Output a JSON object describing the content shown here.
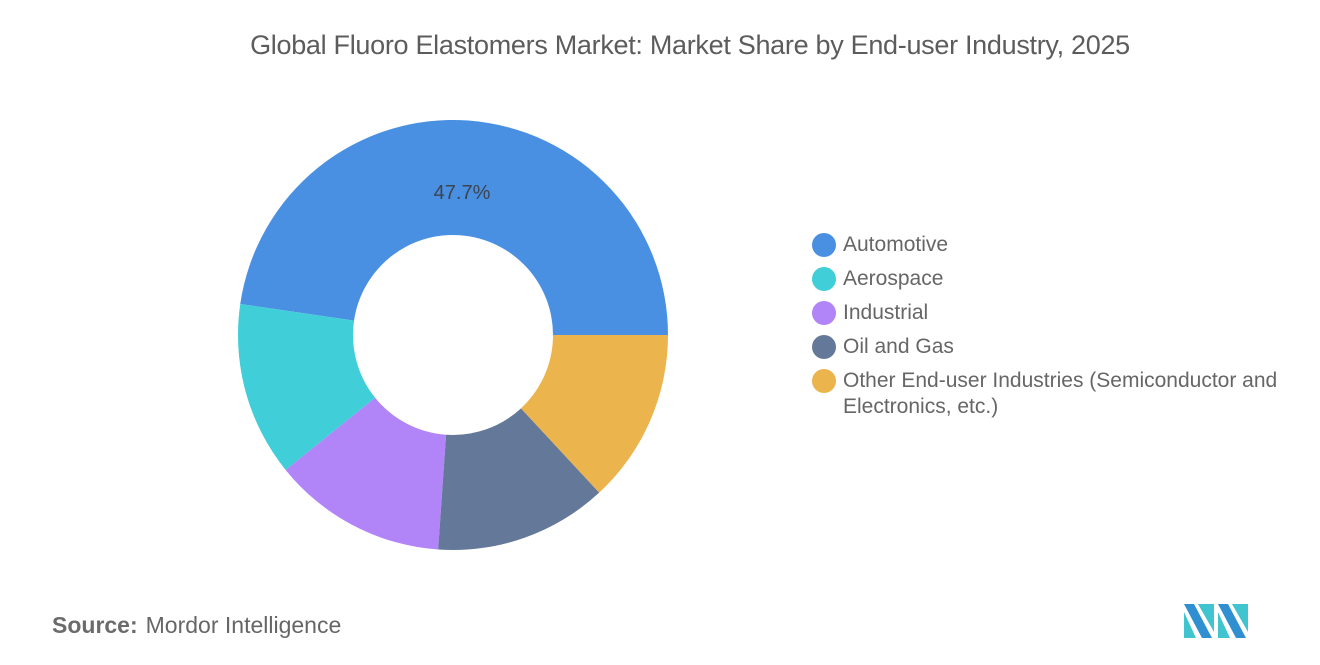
{
  "title": "Global Fluoro Elastomers Market: Market Share by End-user Industry, 2025",
  "source": {
    "label": "Source:",
    "value": "Mordor Intelligence"
  },
  "legend": [
    {
      "label": "Automotive",
      "color": "#4a90e2"
    },
    {
      "label": "Aerospace",
      "color": "#40cfd9"
    },
    {
      "label": "Industrial",
      "color": "#b185f7"
    },
    {
      "label": "Oil and Gas",
      "color": "#64789a"
    },
    {
      "label": "Other End-user Industries (Semiconductor and Electronics, etc.)",
      "color": "#ebb44d"
    }
  ],
  "data_label": "47.7%",
  "chart_data": {
    "type": "pie",
    "subtype": "donut",
    "title": "Global Fluoro Elastomers Market: Market Share by End-user Industry, 2025",
    "categories": [
      "Automotive",
      "Aerospace",
      "Industrial",
      "Oil and Gas",
      "Other End-user Industries (Semiconductor and Electronics, etc.)"
    ],
    "values": [
      47.7,
      13.1,
      13.1,
      13.0,
      13.1
    ],
    "colors": [
      "#4a90e2",
      "#40cfd9",
      "#b185f7",
      "#64789a",
      "#ebb44d"
    ],
    "labels_shown": {
      "Automotive": "47.7%"
    },
    "legend_position": "right"
  }
}
